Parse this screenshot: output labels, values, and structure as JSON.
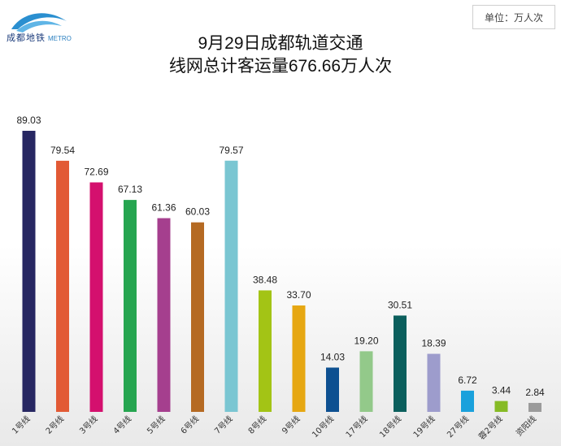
{
  "header": {
    "logo_text": "成都地铁",
    "logo_metro": "METRO",
    "unit_label": "单位：万人次",
    "title_line1": "9月29日成都轨道交通",
    "title_line2": "线网总计客运量676.66万人次"
  },
  "chart_data": {
    "type": "bar",
    "title": "9月29日成都轨道交通 线网总计客运量676.66万人次",
    "unit": "单位：万人次",
    "categories": [
      "1号线",
      "2号线",
      "3号线",
      "4号线",
      "5号线",
      "6号线",
      "7号线",
      "8号线",
      "9号线",
      "10号线",
      "17号线",
      "18号线",
      "19号线",
      "27号线",
      "蓉2号线",
      "资阳线"
    ],
    "values": [
      89.03,
      79.54,
      72.69,
      67.13,
      61.36,
      60.03,
      79.57,
      38.48,
      33.7,
      14.03,
      19.2,
      30.51,
      18.39,
      6.72,
      3.44,
      2.84
    ],
    "value_labels": [
      "89.03",
      "79.54",
      "72.69",
      "67.13",
      "61.36",
      "60.03",
      "79.57",
      "38.48",
      "33.70",
      "14.03",
      "19.20",
      "30.51",
      "18.39",
      "6.72",
      "3.44",
      "2.84"
    ],
    "colors": [
      "#272762",
      "#e25a35",
      "#d4106e",
      "#26a550",
      "#a53f8e",
      "#b56a23",
      "#7ac6d2",
      "#a3c415",
      "#e6a712",
      "#0d5091",
      "#93c98a",
      "#0b5f5d",
      "#9d9ccc",
      "#1aa1dc",
      "#86bb25",
      "#9b9b9b"
    ],
    "ylim": [
      0,
      90
    ],
    "xlabel": "",
    "ylabel": "",
    "grid": false,
    "legend": "none"
  }
}
